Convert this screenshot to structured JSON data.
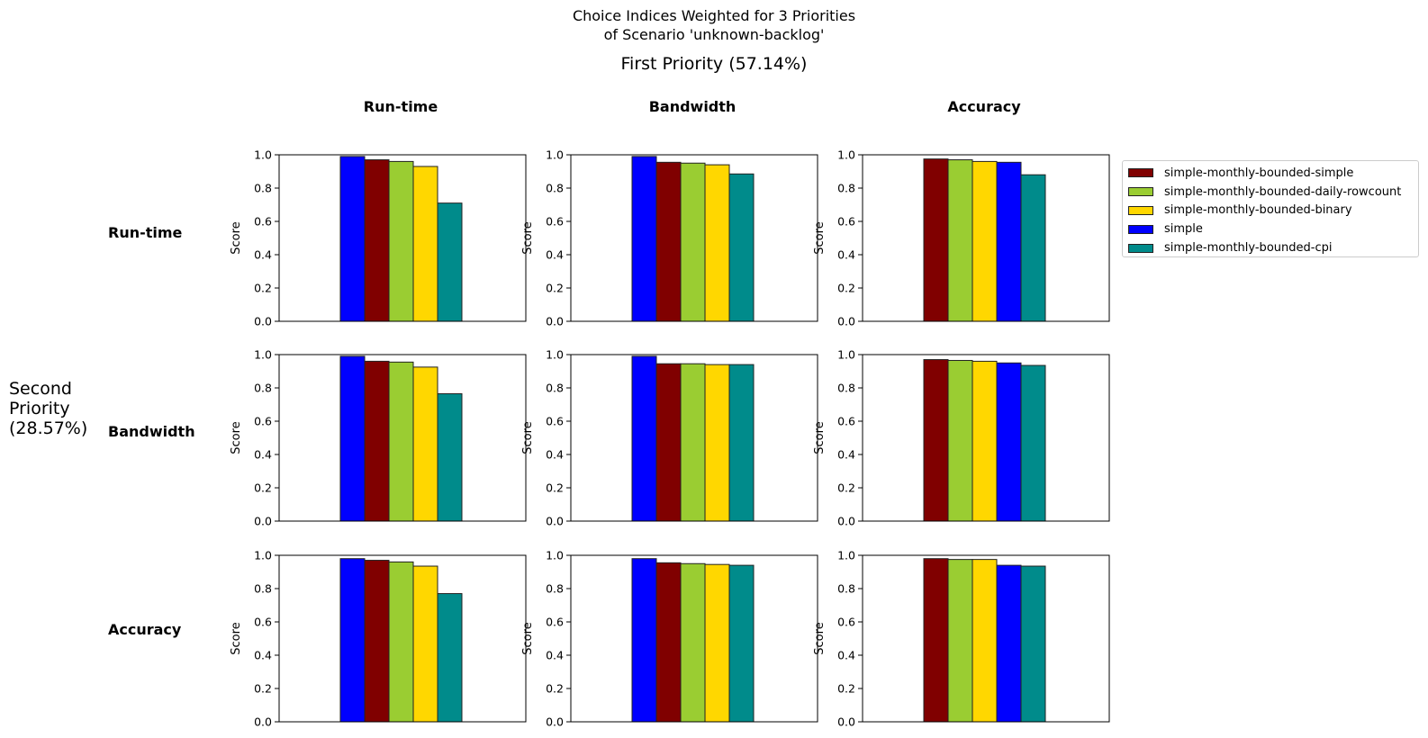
{
  "chart_data": {
    "type": "bar",
    "title_lines": [
      "Choice Indices Weighted for 3 Priorities",
      "of Scenario 'unknown-backlog'"
    ],
    "col_title": "First Priority (57.14%)",
    "row_title": "Second Priority (28.57%)",
    "col_labels": [
      "Run-time",
      "Bandwidth",
      "Accuracy"
    ],
    "row_labels": [
      "Run-time",
      "Bandwidth",
      "Accuracy"
    ],
    "ylabel": "Score",
    "ylim": [
      0,
      1
    ],
    "yticks": [
      "0.0",
      "0.2",
      "0.4",
      "0.6",
      "0.8",
      "1.0"
    ],
    "legend_position": "right",
    "legend": [
      {
        "name": "simple-monthly-bounded-simple",
        "color": "#800000"
      },
      {
        "name": "simple-monthly-bounded-daily-rowcount",
        "color": "#9acd32"
      },
      {
        "name": "simple-monthly-bounded-binary",
        "color": "#ffd700"
      },
      {
        "name": "simple",
        "color": "#0000ff"
      },
      {
        "name": "simple-monthly-bounded-cpi",
        "color": "#008b8b"
      }
    ],
    "panels": [
      {
        "row": "Run-time",
        "col": "Run-time",
        "bars": [
          {
            "series": "simple",
            "value": 0.99
          },
          {
            "series": "simple-monthly-bounded-simple",
            "value": 0.97
          },
          {
            "series": "simple-monthly-bounded-daily-rowcount",
            "value": 0.96
          },
          {
            "series": "simple-monthly-bounded-binary",
            "value": 0.93
          },
          {
            "series": "simple-monthly-bounded-cpi",
            "value": 0.71
          }
        ]
      },
      {
        "row": "Run-time",
        "col": "Bandwidth",
        "bars": [
          {
            "series": "simple",
            "value": 0.99
          },
          {
            "series": "simple-monthly-bounded-simple",
            "value": 0.955
          },
          {
            "series": "simple-monthly-bounded-daily-rowcount",
            "value": 0.95
          },
          {
            "series": "simple-monthly-bounded-binary",
            "value": 0.94
          },
          {
            "series": "simple-monthly-bounded-cpi",
            "value": 0.885
          }
        ]
      },
      {
        "row": "Run-time",
        "col": "Accuracy",
        "bars": [
          {
            "series": "simple-monthly-bounded-simple",
            "value": 0.975
          },
          {
            "series": "simple-monthly-bounded-daily-rowcount",
            "value": 0.97
          },
          {
            "series": "simple-monthly-bounded-binary",
            "value": 0.96
          },
          {
            "series": "simple",
            "value": 0.955
          },
          {
            "series": "simple-monthly-bounded-cpi",
            "value": 0.88
          }
        ]
      },
      {
        "row": "Bandwidth",
        "col": "Run-time",
        "bars": [
          {
            "series": "simple",
            "value": 0.99
          },
          {
            "series": "simple-monthly-bounded-simple",
            "value": 0.96
          },
          {
            "series": "simple-monthly-bounded-daily-rowcount",
            "value": 0.955
          },
          {
            "series": "simple-monthly-bounded-binary",
            "value": 0.925
          },
          {
            "series": "simple-monthly-bounded-cpi",
            "value": 0.765
          }
        ]
      },
      {
        "row": "Bandwidth",
        "col": "Bandwidth",
        "bars": [
          {
            "series": "simple",
            "value": 0.99
          },
          {
            "series": "simple-monthly-bounded-simple",
            "value": 0.945
          },
          {
            "series": "simple-monthly-bounded-daily-rowcount",
            "value": 0.945
          },
          {
            "series": "simple-monthly-bounded-binary",
            "value": 0.94
          },
          {
            "series": "simple-monthly-bounded-cpi",
            "value": 0.94
          }
        ]
      },
      {
        "row": "Bandwidth",
        "col": "Accuracy",
        "bars": [
          {
            "series": "simple-monthly-bounded-simple",
            "value": 0.97
          },
          {
            "series": "simple-monthly-bounded-daily-rowcount",
            "value": 0.965
          },
          {
            "series": "simple-monthly-bounded-binary",
            "value": 0.96
          },
          {
            "series": "simple",
            "value": 0.95
          },
          {
            "series": "simple-monthly-bounded-cpi",
            "value": 0.935
          }
        ]
      },
      {
        "row": "Accuracy",
        "col": "Run-time",
        "bars": [
          {
            "series": "simple",
            "value": 0.98
          },
          {
            "series": "simple-monthly-bounded-simple",
            "value": 0.97
          },
          {
            "series": "simple-monthly-bounded-daily-rowcount",
            "value": 0.96
          },
          {
            "series": "simple-monthly-bounded-binary",
            "value": 0.935
          },
          {
            "series": "simple-monthly-bounded-cpi",
            "value": 0.77
          }
        ]
      },
      {
        "row": "Accuracy",
        "col": "Bandwidth",
        "bars": [
          {
            "series": "simple",
            "value": 0.98
          },
          {
            "series": "simple-monthly-bounded-simple",
            "value": 0.955
          },
          {
            "series": "simple-monthly-bounded-daily-rowcount",
            "value": 0.95
          },
          {
            "series": "simple-monthly-bounded-binary",
            "value": 0.945
          },
          {
            "series": "simple-monthly-bounded-cpi",
            "value": 0.94
          }
        ]
      },
      {
        "row": "Accuracy",
        "col": "Accuracy",
        "bars": [
          {
            "series": "simple-monthly-bounded-simple",
            "value": 0.98
          },
          {
            "series": "simple-monthly-bounded-daily-rowcount",
            "value": 0.975
          },
          {
            "series": "simple-monthly-bounded-binary",
            "value": 0.975
          },
          {
            "series": "simple",
            "value": 0.94
          },
          {
            "series": "simple-monthly-bounded-cpi",
            "value": 0.935
          }
        ]
      }
    ]
  }
}
